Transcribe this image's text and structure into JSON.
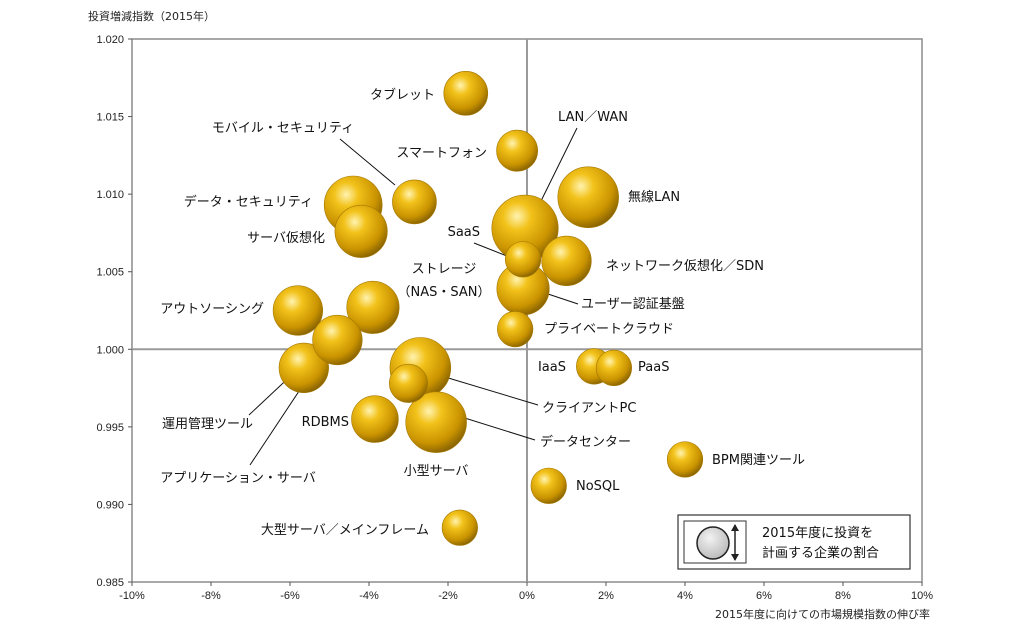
{
  "chart_data": {
    "type": "scatter",
    "title": "",
    "ylabel": "投資増減指数（2015年）",
    "xlabel": "2015年度に向けての市場規模指数の伸び率",
    "xlim": [
      -0.1,
      0.1
    ],
    "ylim": [
      0.985,
      1.02
    ],
    "xticks": [
      -0.1,
      -0.08,
      -0.06,
      -0.04,
      -0.02,
      0.0,
      0.02,
      0.04,
      0.06,
      0.08,
      0.1
    ],
    "xtick_labels": [
      "-10%",
      "-8%",
      "-6%",
      "-4%",
      "-2%",
      "0%",
      "2%",
      "4%",
      "6%",
      "8%",
      "10%"
    ],
    "yticks": [
      0.985,
      0.99,
      0.995,
      1.0,
      1.005,
      1.01,
      1.015,
      1.02
    ],
    "ytick_labels": [
      "0.985",
      "0.990",
      "0.995",
      "1.000",
      "1.005",
      "1.010",
      "1.015",
      "1.020"
    ],
    "quadrant_lines": {
      "x": 0.0,
      "y": 1.0
    },
    "grid": false,
    "bubble_color": "#d8a200",
    "legend": {
      "text": "2015年度に投資を\n計画する企業の割合",
      "position": "bottom-right"
    },
    "points": [
      {
        "label": "タブレット",
        "x": -0.0155,
        "y": 1.0165,
        "size": 5
      },
      {
        "label": "モバイル・セキュリティ",
        "x": -0.0285,
        "y": 1.0095,
        "size": 5
      },
      {
        "label": "スマートフォン",
        "x": -0.0025,
        "y": 1.0128,
        "size": 4.5
      },
      {
        "label": "LAN／WAN",
        "x": -0.0005,
        "y": 1.0078,
        "size": 9
      },
      {
        "label": "無線LAN",
        "x": 0.0155,
        "y": 1.0098,
        "size": 8
      },
      {
        "label": "データ・セキュリティ",
        "x": -0.044,
        "y": 1.0093,
        "size": 7.5
      },
      {
        "label": "サーバ仮想化",
        "x": -0.042,
        "y": 1.0076,
        "size": 6.5
      },
      {
        "label": "SaaS",
        "x": -0.001,
        "y": 1.0058,
        "size": 3.5
      },
      {
        "label": "ネットワーク仮想化／SDN",
        "x": 0.01,
        "y": 1.0057,
        "size": 6
      },
      {
        "label": "ストレージ（NAS・SAN）",
        "x": -0.039,
        "y": 1.0027,
        "size": 6.5
      },
      {
        "label": "ユーザー認証基盤",
        "x": -0.001,
        "y": 1.0039,
        "size": 6.5
      },
      {
        "label": "アウトソーシング",
        "x": -0.058,
        "y": 1.0025,
        "size": 6
      },
      {
        "label": "プライベートクラウド",
        "x": -0.003,
        "y": 1.0013,
        "size": 3.5
      },
      {
        "label": "運用管理ツール",
        "x": -0.0565,
        "y": 0.9988,
        "size": 6
      },
      {
        "label": "アプリケーション・サーバ",
        "x": -0.048,
        "y": 1.0006,
        "size": 6
      },
      {
        "label": "IaaS",
        "x": 0.017,
        "y": 0.9989,
        "size": 3.5
      },
      {
        "label": "PaaS",
        "x": 0.022,
        "y": 0.9988,
        "size": 3.5
      },
      {
        "label": "クライアントPC",
        "x": -0.027,
        "y": 0.9988,
        "size": 8
      },
      {
        "label": "データセンター",
        "x": -0.03,
        "y": 0.9978,
        "size": 4
      },
      {
        "label": "RDBMS",
        "x": -0.0385,
        "y": 0.9955,
        "size": 5.5
      },
      {
        "label": "小型サーバ",
        "x": -0.023,
        "y": 0.9953,
        "size": 8
      },
      {
        "label": "BPM関連ツール",
        "x": 0.04,
        "y": 0.9929,
        "size": 3.5
      },
      {
        "label": "NoSQL",
        "x": 0.0055,
        "y": 0.9912,
        "size": 3.5
      },
      {
        "label": "大型サーバ／メインフレーム",
        "x": -0.017,
        "y": 0.9885,
        "size": 3.5
      }
    ]
  }
}
